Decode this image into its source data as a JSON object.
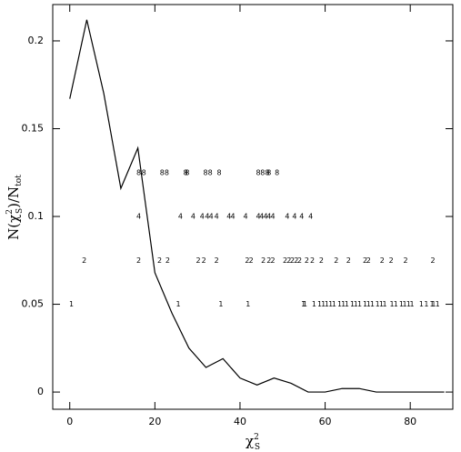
{
  "chart_data": {
    "type": "line",
    "xlabel": [
      "χ",
      "2",
      "S"
    ],
    "ylabel": [
      "N(χ",
      "2",
      "S",
      ")/N",
      "tot"
    ],
    "x": [
      0,
      4,
      8,
      12,
      16,
      20,
      24,
      28,
      32,
      36,
      40,
      44,
      48,
      52,
      56,
      60,
      64,
      68,
      72,
      76,
      80,
      84,
      88
    ],
    "values": [
      0.167,
      0.212,
      0.17,
      0.116,
      0.139,
      0.068,
      0.045,
      0.025,
      0.014,
      0.019,
      0.008,
      0.004,
      0.008,
      0.005,
      0.0,
      0.0,
      0.002,
      0.002,
      0.0,
      0.0,
      0.0,
      0.0,
      0.0
    ],
    "color": "#000000",
    "markers": [
      {
        "label": "8",
        "y": 0.125,
        "x": [
          16.2,
          17.4,
          21.7,
          22.8,
          27.2,
          27.6,
          31.9,
          33.0,
          35.1,
          44.3,
          45.3,
          46.4,
          46.8,
          48.7
        ]
      },
      {
        "label": "4",
        "y": 0.1,
        "x": [
          16.2,
          26,
          29,
          31.1,
          32.3,
          33.2,
          34.5,
          37.4,
          38.3,
          41.3,
          44.3,
          45.1,
          46,
          46.8,
          47.7,
          51.1,
          52.8,
          54.5,
          56.6
        ]
      },
      {
        "label": "2",
        "y": 0.075,
        "x": [
          3.4,
          16.2,
          21.1,
          23,
          30.2,
          31.5,
          34.5,
          41.7,
          42.6,
          45.5,
          46.8,
          47.7,
          50.6,
          51.5,
          52.3,
          53.2,
          54,
          55.7,
          57,
          59.1,
          62.6,
          65.5,
          69.4,
          70.2,
          73.4,
          75.5,
          78.9,
          85.3
        ]
      },
      {
        "label": "1",
        "y": 0.05,
        "x": [
          0.4,
          25.5,
          35.5,
          41.9,
          54.9,
          55.3,
          57.4,
          58.7,
          59.6,
          60.4,
          61.3,
          62.1,
          63.4,
          64.3,
          65.1,
          66.4,
          67.2,
          68.1,
          69.4,
          70.2,
          71.1,
          72.3,
          73.2,
          74,
          75.7,
          76.6,
          77.9,
          78.7,
          79.6,
          80.4,
          82.6,
          83.8,
          85.1,
          85.5,
          86.4
        ]
      }
    ],
    "xlim": [
      -4,
      90
    ],
    "ylim": [
      -0.0098,
      0.2207
    ],
    "xticks": [
      0,
      20,
      40,
      60,
      80
    ],
    "yticks": [
      0,
      0.05,
      0.1,
      0.15,
      0.2
    ]
  }
}
